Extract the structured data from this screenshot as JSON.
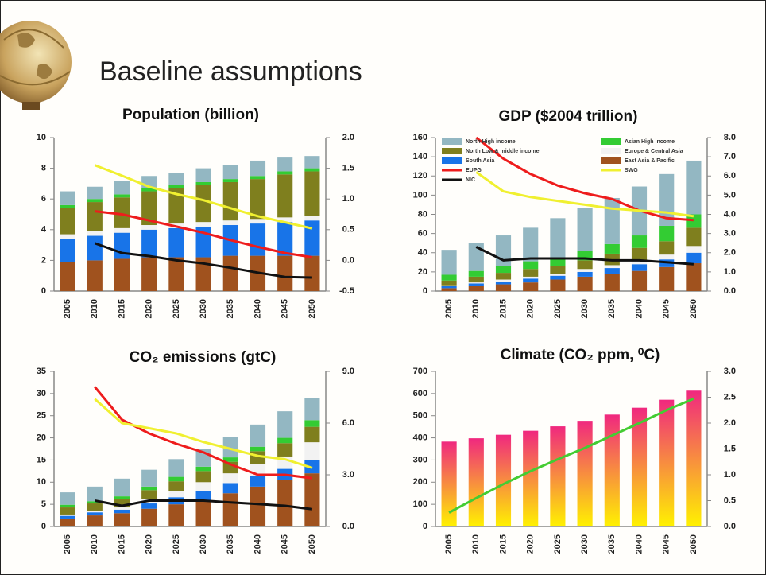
{
  "slide": {
    "title": "Baseline assumptions"
  },
  "chart_data": [
    {
      "type": "bar",
      "stacked": true,
      "title": "Population (billion)",
      "categories": [
        "2005",
        "2010",
        "2015",
        "2020",
        "2025",
        "2030",
        "2035",
        "2040",
        "2045",
        "2050"
      ],
      "ylim": [
        0,
        10
      ],
      "yticks": [
        0,
        2,
        4,
        6,
        8,
        10
      ],
      "y2lim": [
        -0.5,
        2.0
      ],
      "y2ticks": [
        -0.5,
        {
          "value": 0.0,
          "label": "0.0"
        },
        0.5,
        {
          "value": 1.0,
          "label": "1.0"
        },
        1.5,
        {
          "value": 2.0,
          "label": "2.0"
        }
      ],
      "series": [
        {
          "type": "bar",
          "color": "#a0521e",
          "values": [
            1.9,
            2.0,
            2.1,
            2.2,
            2.2,
            2.2,
            2.3,
            2.3,
            2.3,
            2.3
          ]
        },
        {
          "type": "bar",
          "color": "#1874e8",
          "values": [
            1.5,
            1.6,
            1.7,
            1.8,
            1.9,
            2.0,
            2.0,
            2.1,
            2.2,
            2.3
          ]
        },
        {
          "type": "bar",
          "color": "#f2f2f2",
          "values": [
            0.3,
            0.3,
            0.3,
            0.3,
            0.3,
            0.3,
            0.3,
            0.3,
            0.3,
            0.3
          ]
        },
        {
          "type": "bar",
          "color": "#7f7f1e",
          "values": [
            1.7,
            1.9,
            2.0,
            2.2,
            2.3,
            2.4,
            2.5,
            2.6,
            2.8,
            2.9
          ]
        },
        {
          "type": "bar",
          "color": "#33cc33",
          "values": [
            0.2,
            0.2,
            0.2,
            0.2,
            0.2,
            0.2,
            0.2,
            0.2,
            0.2,
            0.2
          ]
        },
        {
          "type": "bar",
          "color": "#93b7c2",
          "values": [
            0.9,
            0.8,
            0.9,
            0.8,
            0.8,
            0.9,
            0.9,
            1.0,
            0.9,
            0.8
          ]
        },
        {
          "type": "line",
          "axis": "y2",
          "color": "#ee1c1c",
          "values": [
            null,
            0.8,
            0.75,
            0.65,
            0.55,
            0.45,
            0.33,
            0.22,
            0.12,
            0.05
          ]
        },
        {
          "type": "line",
          "axis": "y2",
          "color": "#f0f030",
          "values": [
            null,
            1.55,
            1.38,
            1.2,
            1.08,
            0.98,
            0.85,
            0.72,
            0.62,
            0.52
          ]
        },
        {
          "type": "line",
          "axis": "y2",
          "color": "#111111",
          "values": [
            null,
            0.28,
            0.12,
            0.07,
            0.0,
            -0.05,
            -0.12,
            -0.2,
            -0.27,
            -0.28
          ]
        }
      ]
    },
    {
      "type": "bar",
      "stacked": true,
      "title": "GDP ($2004 trillion)",
      "categories": [
        "2005",
        "2010",
        "2015",
        "2020",
        "2025",
        "2030",
        "2035",
        "2040",
        "2045",
        "2050"
      ],
      "ylim": [
        0,
        160
      ],
      "yticks": [
        0,
        20,
        40,
        60,
        80,
        100,
        120,
        140,
        160
      ],
      "y2lim": [
        0,
        8
      ],
      "y2ticks": [
        {
          "value": 0,
          "label": "0.0"
        },
        {
          "value": 1,
          "label": "1.0"
        },
        {
          "value": 2,
          "label": "2.0"
        },
        {
          "value": 3,
          "label": "3.0"
        },
        {
          "value": 4,
          "label": "4.0"
        },
        {
          "value": 5,
          "label": "5.0"
        },
        {
          "value": 6,
          "label": "6.0"
        },
        {
          "value": 7,
          "label": "7.0"
        },
        {
          "value": 8,
          "label": "8.0"
        }
      ],
      "series": [
        {
          "type": "bar",
          "name": "East Asia & Pacific",
          "color": "#a0521e",
          "values": [
            3,
            5,
            7,
            9,
            12,
            15,
            18,
            21,
            25,
            29
          ]
        },
        {
          "type": "bar",
          "name": "South Asia",
          "color": "#1874e8",
          "values": [
            2,
            3,
            3,
            4,
            4,
            5,
            6,
            7,
            8,
            11
          ]
        },
        {
          "type": "bar",
          "name": "Europe & Central Asia",
          "color": "#f2f2f2",
          "values": [
            1,
            1,
            2,
            2,
            2,
            3,
            3,
            4,
            5,
            7
          ]
        },
        {
          "type": "bar",
          "name": "North Low & middle income",
          "color": "#7f7f1e",
          "values": [
            5,
            6,
            7,
            8,
            8,
            9,
            12,
            13,
            14,
            19
          ]
        },
        {
          "type": "bar",
          "name": "Asian High income",
          "color": "#33cc33",
          "values": [
            6,
            6,
            7,
            8,
            8,
            10,
            10,
            13,
            16,
            14
          ]
        },
        {
          "type": "bar",
          "name": "North High income",
          "color": "#93b7c2",
          "values": [
            26,
            29,
            32,
            35,
            42,
            45,
            48,
            51,
            54,
            56
          ]
        },
        {
          "type": "line",
          "axis": "y2",
          "name": "EUPG",
          "color": "#ee1c1c",
          "values": [
            null,
            8.0,
            6.9,
            6.1,
            5.5,
            5.1,
            4.8,
            4.2,
            3.8,
            3.7
          ]
        },
        {
          "type": "line",
          "axis": "y2",
          "name": "SWG",
          "color": "#f0f030",
          "values": [
            null,
            6.2,
            5.2,
            4.9,
            4.7,
            4.5,
            4.3,
            4.2,
            4.1,
            3.9
          ]
        },
        {
          "type": "line",
          "axis": "y2",
          "name": "NIC",
          "color": "#111111",
          "values": [
            null,
            2.3,
            1.6,
            1.7,
            1.7,
            1.7,
            1.6,
            1.6,
            1.5,
            1.4
          ]
        }
      ]
    },
    {
      "type": "bar",
      "stacked": true,
      "title": "CO₂ emissions (gtC)",
      "categories": [
        "2005",
        "2010",
        "2015",
        "2020",
        "2025",
        "2030",
        "2035",
        "2040",
        "2045",
        "2050"
      ],
      "ylim": [
        0,
        35
      ],
      "yticks": [
        0,
        5,
        10,
        15,
        20,
        25,
        30,
        35
      ],
      "y2lim": [
        0,
        9
      ],
      "y2ticks": [
        {
          "value": 0,
          "label": "0.0"
        },
        {
          "value": 3,
          "label": "3.0"
        },
        {
          "value": 6,
          "label": "6.0"
        },
        {
          "value": 9,
          "label": "9.0"
        }
      ],
      "series": [
        {
          "type": "bar",
          "color": "#a0521e",
          "values": [
            1.8,
            2.5,
            3,
            4,
            5,
            6,
            7.5,
            9,
            10.5,
            12
          ]
        },
        {
          "type": "bar",
          "color": "#1874e8",
          "values": [
            0.6,
            0.7,
            0.8,
            1.2,
            1.6,
            2,
            2.3,
            2.5,
            2.5,
            3
          ]
        },
        {
          "type": "bar",
          "color": "#f2f2f2",
          "values": [
            0.3,
            0.3,
            0.5,
            1,
            1.4,
            2,
            2.2,
            2.5,
            2.8,
            4
          ]
        },
        {
          "type": "bar",
          "color": "#7f7f1e",
          "values": [
            1.6,
            1.7,
            1.8,
            2,
            2.2,
            2.5,
            2.6,
            3,
            3,
            3.5
          ]
        },
        {
          "type": "bar",
          "color": "#33cc33",
          "values": [
            0.6,
            0.5,
            0.7,
            0.8,
            1,
            1,
            1,
            1,
            1.2,
            1.5
          ]
        },
        {
          "type": "bar",
          "color": "#93b7c2",
          "values": [
            2.8,
            3.3,
            4.0,
            3.8,
            4.0,
            4.0,
            4.6,
            5,
            6,
            5
          ]
        },
        {
          "type": "line",
          "axis": "y2",
          "color": "#ee1c1c",
          "values": [
            null,
            8.1,
            6.2,
            5.4,
            4.8,
            4.3,
            3.6,
            3.0,
            3.0,
            2.8
          ]
        },
        {
          "type": "line",
          "axis": "y2",
          "color": "#f0f030",
          "values": [
            null,
            7.4,
            6.0,
            5.7,
            5.4,
            4.9,
            4.5,
            4.1,
            3.9,
            3.4
          ]
        },
        {
          "type": "line",
          "axis": "y2",
          "color": "#111111",
          "values": [
            null,
            1.5,
            1.2,
            1.5,
            1.5,
            1.5,
            1.4,
            1.3,
            1.2,
            1.0
          ]
        }
      ]
    },
    {
      "type": "bar",
      "stacked": false,
      "title": "Climate (CO₂ ppm, ⁰C)",
      "categories": [
        "2005",
        "2010",
        "2015",
        "2020",
        "2025",
        "2030",
        "2035",
        "2040",
        "2045",
        "2050"
      ],
      "ylim": [
        0,
        700
      ],
      "yticks": [
        0,
        100,
        200,
        300,
        400,
        500,
        600,
        700
      ],
      "y2lim": [
        0,
        3
      ],
      "y2ticks": [
        {
          "value": 0,
          "label": "0.0"
        },
        0.5,
        {
          "value": 1,
          "label": "1.0"
        },
        1.5,
        {
          "value": 2,
          "label": "2.0"
        },
        2.5,
        {
          "value": 3,
          "label": "3.0"
        }
      ],
      "series": [
        {
          "type": "bar",
          "gradient": [
            "#f0287f",
            "#fff200"
          ],
          "values": [
            383,
            398,
            414,
            432,
            452,
            477,
            505,
            536,
            572,
            613
          ]
        },
        {
          "type": "line",
          "axis": "y2",
          "color": "#44cc33",
          "values": [
            0.27,
            0.55,
            0.82,
            1.07,
            1.3,
            1.52,
            1.76,
            2.0,
            2.25,
            2.47
          ]
        }
      ]
    }
  ]
}
